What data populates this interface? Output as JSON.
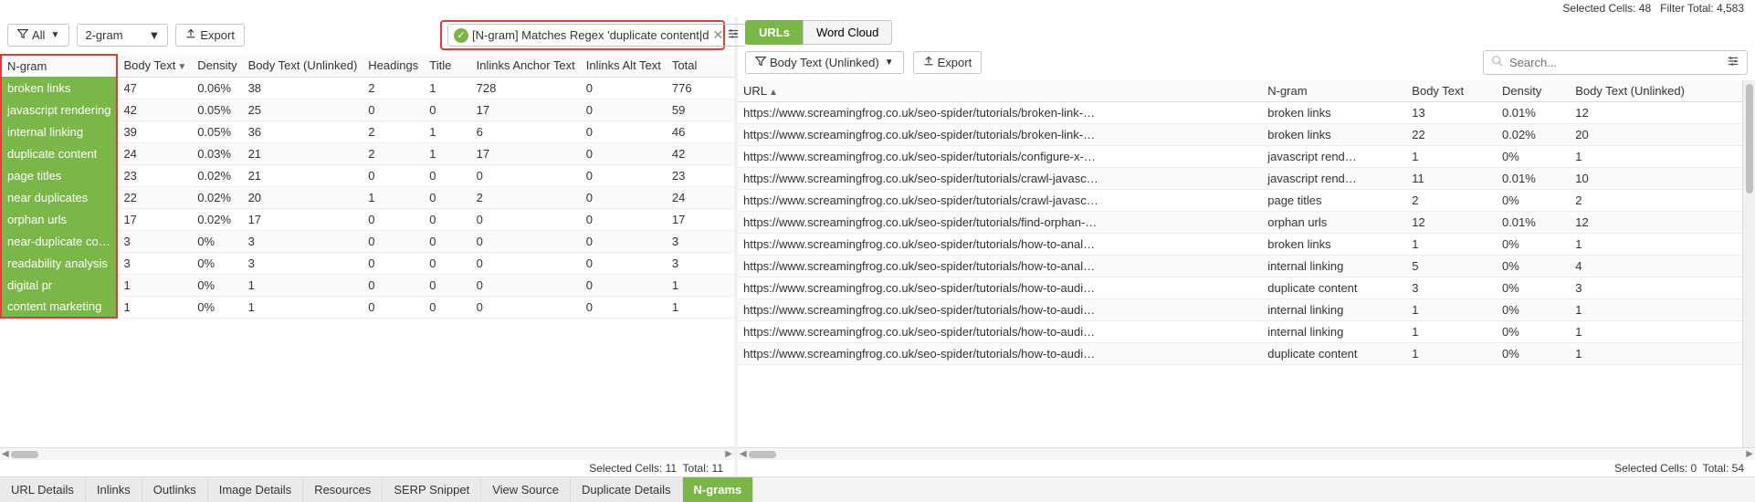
{
  "topStatus": {
    "selectedCells": "Selected Cells:  48",
    "filterTotal": "Filter Total:  4,583"
  },
  "left": {
    "toolbar": {
      "allBtn": "All",
      "gramSelect": "2-gram",
      "exportBtn": "Export",
      "filterLabel": "[N-gram] Matches Regex 'duplicate content|d"
    },
    "columns": [
      "N-gram",
      "Body Text",
      "Density",
      "Body Text (Unlinked)",
      "Headings",
      "Title",
      "Inlinks Anchor Text",
      "Inlinks Alt Text",
      "Total"
    ],
    "rows": [
      {
        "ngram": "broken links",
        "bt": "47",
        "den": "0.06%",
        "btu": "38",
        "hd": "2",
        "ti": "1",
        "iat": "728",
        "ialt": "0",
        "tot": "776"
      },
      {
        "ngram": "javascript rendering",
        "bt": "42",
        "den": "0.05%",
        "btu": "25",
        "hd": "0",
        "ti": "0",
        "iat": "17",
        "ialt": "0",
        "tot": "59"
      },
      {
        "ngram": "internal linking",
        "bt": "39",
        "den": "0.05%",
        "btu": "36",
        "hd": "2",
        "ti": "1",
        "iat": "6",
        "ialt": "0",
        "tot": "46"
      },
      {
        "ngram": "duplicate content",
        "bt": "24",
        "den": "0.03%",
        "btu": "21",
        "hd": "2",
        "ti": "1",
        "iat": "17",
        "ialt": "0",
        "tot": "42"
      },
      {
        "ngram": "page titles",
        "bt": "23",
        "den": "0.02%",
        "btu": "21",
        "hd": "0",
        "ti": "0",
        "iat": "0",
        "ialt": "0",
        "tot": "23"
      },
      {
        "ngram": "near duplicates",
        "bt": "22",
        "den": "0.02%",
        "btu": "20",
        "hd": "1",
        "ti": "0",
        "iat": "2",
        "ialt": "0",
        "tot": "24"
      },
      {
        "ngram": "orphan urls",
        "bt": "17",
        "den": "0.02%",
        "btu": "17",
        "hd": "0",
        "ti": "0",
        "iat": "0",
        "ialt": "0",
        "tot": "17"
      },
      {
        "ngram": "near-duplicate co…",
        "bt": "3",
        "den": "0%",
        "btu": "3",
        "hd": "0",
        "ti": "0",
        "iat": "0",
        "ialt": "0",
        "tot": "3"
      },
      {
        "ngram": "readability analysis",
        "bt": "3",
        "den": "0%",
        "btu": "3",
        "hd": "0",
        "ti": "0",
        "iat": "0",
        "ialt": "0",
        "tot": "3"
      },
      {
        "ngram": "digital pr",
        "bt": "1",
        "den": "0%",
        "btu": "1",
        "hd": "0",
        "ti": "0",
        "iat": "0",
        "ialt": "0",
        "tot": "1"
      },
      {
        "ngram": "content marketing",
        "bt": "1",
        "den": "0%",
        "btu": "1",
        "hd": "0",
        "ti": "0",
        "iat": "0",
        "ialt": "0",
        "tot": "1"
      }
    ],
    "status": {
      "selected": "Selected Cells:  11",
      "total": "Total:  11"
    }
  },
  "right": {
    "tabs": {
      "urls": "URLs",
      "wordcloud": "Word Cloud"
    },
    "toolbar": {
      "filterBtn": "Body Text (Unlinked)",
      "exportBtn": "Export",
      "searchPlaceholder": "Search..."
    },
    "columns": [
      "URL",
      "N-gram",
      "Body Text",
      "Density",
      "Body Text (Unlinked)"
    ],
    "rows": [
      {
        "url": "https://www.screamingfrog.co.uk/seo-spider/tutorials/broken-link-…",
        "ng": "broken links",
        "bt": "13",
        "den": "0.01%",
        "btu": "12"
      },
      {
        "url": "https://www.screamingfrog.co.uk/seo-spider/tutorials/broken-link-…",
        "ng": "broken links",
        "bt": "22",
        "den": "0.02%",
        "btu": "20"
      },
      {
        "url": "https://www.screamingfrog.co.uk/seo-spider/tutorials/configure-x-…",
        "ng": "javascript rend…",
        "bt": "1",
        "den": "0%",
        "btu": "1"
      },
      {
        "url": "https://www.screamingfrog.co.uk/seo-spider/tutorials/crawl-javasc…",
        "ng": "javascript rend…",
        "bt": "11",
        "den": "0.01%",
        "btu": "10"
      },
      {
        "url": "https://www.screamingfrog.co.uk/seo-spider/tutorials/crawl-javasc…",
        "ng": "page titles",
        "bt": "2",
        "den": "0%",
        "btu": "2"
      },
      {
        "url": "https://www.screamingfrog.co.uk/seo-spider/tutorials/find-orphan-…",
        "ng": "orphan urls",
        "bt": "12",
        "den": "0.01%",
        "btu": "12"
      },
      {
        "url": "https://www.screamingfrog.co.uk/seo-spider/tutorials/how-to-anal…",
        "ng": "broken links",
        "bt": "1",
        "den": "0%",
        "btu": "1"
      },
      {
        "url": "https://www.screamingfrog.co.uk/seo-spider/tutorials/how-to-anal…",
        "ng": "internal linking",
        "bt": "5",
        "den": "0%",
        "btu": "4"
      },
      {
        "url": "https://www.screamingfrog.co.uk/seo-spider/tutorials/how-to-audi…",
        "ng": "duplicate content",
        "bt": "3",
        "den": "0%",
        "btu": "3"
      },
      {
        "url": "https://www.screamingfrog.co.uk/seo-spider/tutorials/how-to-audi…",
        "ng": "internal linking",
        "bt": "1",
        "den": "0%",
        "btu": "1"
      },
      {
        "url": "https://www.screamingfrog.co.uk/seo-spider/tutorials/how-to-audi…",
        "ng": "internal linking",
        "bt": "1",
        "den": "0%",
        "btu": "1"
      },
      {
        "url": "https://www.screamingfrog.co.uk/seo-spider/tutorials/how-to-audi…",
        "ng": "duplicate content",
        "bt": "1",
        "den": "0%",
        "btu": "1"
      }
    ],
    "status": {
      "selected": "Selected Cells:  0",
      "total": "Total:  54"
    }
  },
  "bottomTabs": [
    "URL Details",
    "Inlinks",
    "Outlinks",
    "Image Details",
    "Resources",
    "SERP Snippet",
    "View Source",
    "Duplicate Details",
    "N-grams"
  ],
  "activeBottomTab": 8
}
